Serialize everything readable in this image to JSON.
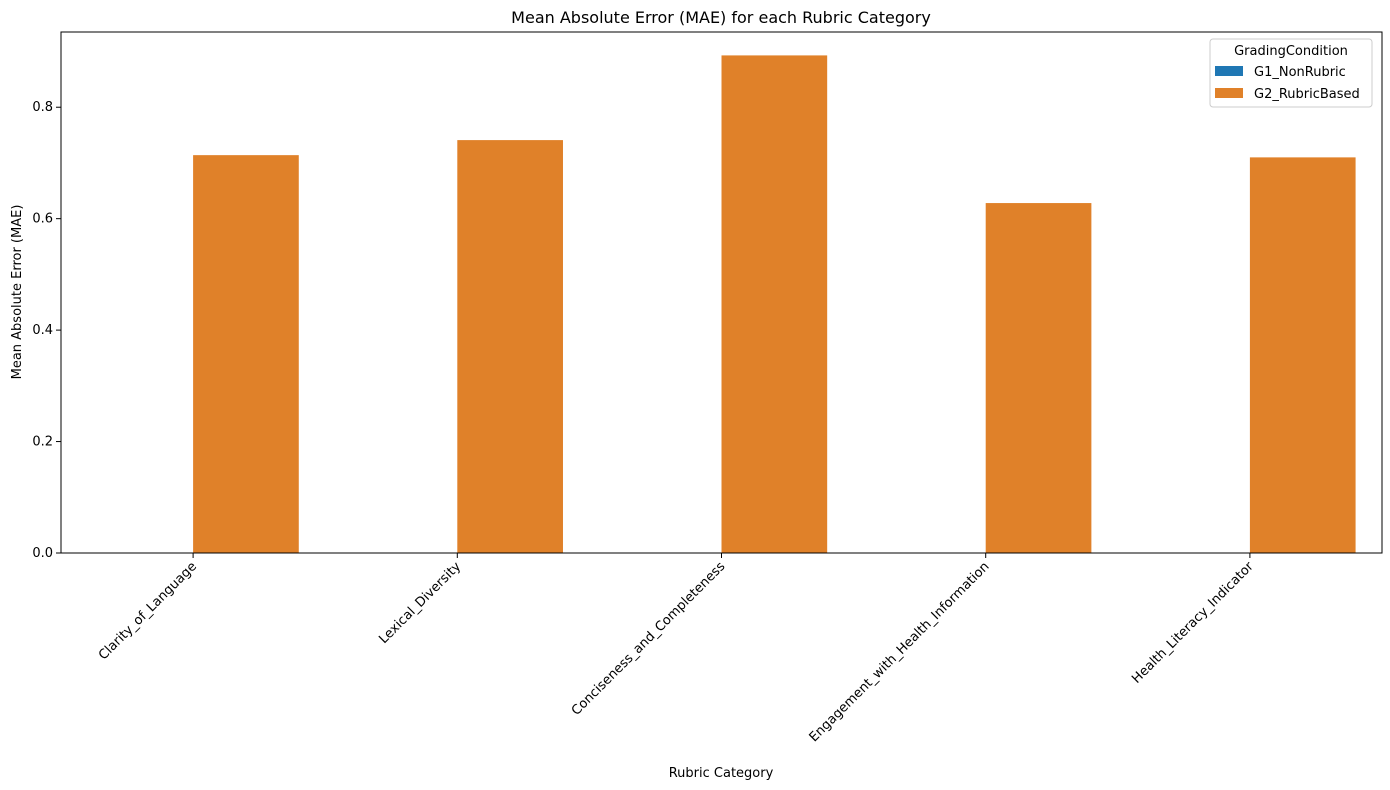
{
  "chart_data": {
    "type": "bar",
    "title": "Mean Absolute Error (MAE) for each Rubric Category",
    "xlabel": "Rubric Category",
    "ylabel": "Mean Absolute Error (MAE)",
    "categories": [
      "Clarity_of_Language",
      "Lexical_Diversity",
      "Conciseness_and_Completeness",
      "Engagement_with_Health_Information",
      "Health_Literacy_Indicator"
    ],
    "series": [
      {
        "name": "G1_NonRubric",
        "color": "#1f77b4",
        "values": [
          0,
          0,
          0,
          0,
          0
        ]
      },
      {
        "name": "G2_RubricBased",
        "color": "#e08129",
        "values": [
          0.714,
          0.741,
          0.893,
          0.628,
          0.71
        ]
      }
    ],
    "ylim": [
      0,
      0.935
    ],
    "yticks": [
      0.0,
      0.2,
      0.4,
      0.6,
      0.8
    ],
    "ytick_labels": [
      "0.0",
      "0.2",
      "0.4",
      "0.6",
      "0.8"
    ],
    "legend": {
      "title": "GradingCondition",
      "position": "top-right"
    },
    "grid": false
  }
}
